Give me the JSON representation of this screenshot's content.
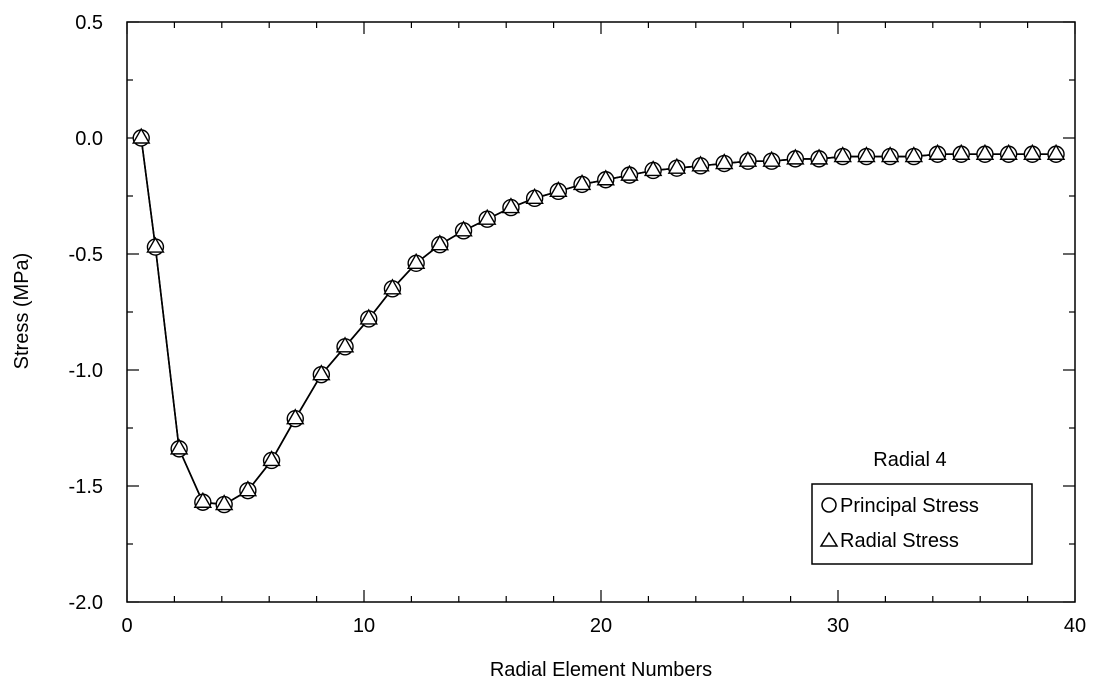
{
  "chart_data": {
    "type": "line",
    "xlabel": "Radial Element Numbers",
    "ylabel": "Stress (MPa)",
    "xlim": [
      0,
      40
    ],
    "ylim": [
      -2.0,
      0.5
    ],
    "xticks": [
      0,
      10,
      20,
      30,
      40
    ],
    "xtick_labels": [
      "0",
      "10",
      "20",
      "30",
      "40"
    ],
    "yticks": [
      0.5,
      0.0,
      -0.5,
      -1.0,
      -1.5,
      -2.0
    ],
    "ytick_labels": [
      "0.5",
      "0.0",
      "-0.5",
      "-1.0",
      "-1.5",
      "-2.0"
    ],
    "grid": false,
    "legend": {
      "title": "Radial 4",
      "position": "bottom-right",
      "entries": [
        {
          "marker": "circle",
          "label": "Principal Stress"
        },
        {
          "marker": "triangle",
          "label": "Radial Stress"
        }
      ]
    },
    "x": [
      0.6,
      1.2,
      2.2,
      3.2,
      4.1,
      5.1,
      6.1,
      7.1,
      8.2,
      9.2,
      10.2,
      11.2,
      12.2,
      13.2,
      14.2,
      15.2,
      16.2,
      17.2,
      18.2,
      19.2,
      20.2,
      21.2,
      22.2,
      23.2,
      24.2,
      25.2,
      26.2,
      27.2,
      28.2,
      29.2,
      30.2,
      31.2,
      32.2,
      33.2,
      34.2,
      35.2,
      36.2,
      37.2,
      38.2,
      39.2
    ],
    "series": [
      {
        "name": "Principal Stress",
        "marker": "circle",
        "values": [
          0.0,
          -0.47,
          -1.34,
          -1.57,
          -1.58,
          -1.52,
          -1.39,
          -1.21,
          -1.02,
          -0.9,
          -0.78,
          -0.65,
          -0.54,
          -0.46,
          -0.4,
          -0.35,
          -0.3,
          -0.26,
          -0.23,
          -0.2,
          -0.18,
          -0.16,
          -0.14,
          -0.13,
          -0.12,
          -0.11,
          -0.1,
          -0.1,
          -0.09,
          -0.09,
          -0.08,
          -0.08,
          -0.08,
          -0.08,
          -0.07,
          -0.07,
          -0.07,
          -0.07,
          -0.07,
          -0.07
        ]
      },
      {
        "name": "Radial Stress",
        "marker": "triangle",
        "values": [
          0.0,
          -0.47,
          -1.34,
          -1.57,
          -1.58,
          -1.52,
          -1.39,
          -1.21,
          -1.02,
          -0.9,
          -0.78,
          -0.65,
          -0.54,
          -0.46,
          -0.4,
          -0.35,
          -0.3,
          -0.26,
          -0.23,
          -0.2,
          -0.18,
          -0.16,
          -0.14,
          -0.13,
          -0.12,
          -0.11,
          -0.1,
          -0.1,
          -0.09,
          -0.09,
          -0.08,
          -0.08,
          -0.08,
          -0.08,
          -0.07,
          -0.07,
          -0.07,
          -0.07,
          -0.07,
          -0.07
        ]
      }
    ]
  }
}
